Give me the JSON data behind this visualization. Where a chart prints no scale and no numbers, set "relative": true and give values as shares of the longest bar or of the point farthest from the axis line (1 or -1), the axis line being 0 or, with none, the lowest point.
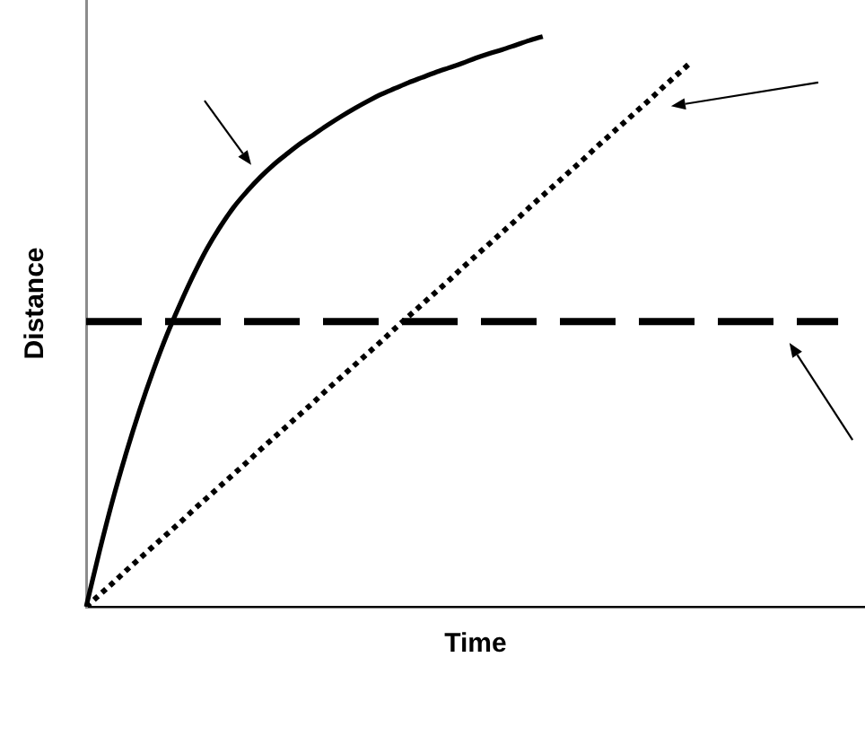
{
  "chart_data": {
    "type": "line",
    "xlabel": "Time",
    "ylabel": "Distance",
    "relative": true,
    "tick_labels": false,
    "marker": "none",
    "categories": [
      null,
      null,
      null,
      null,
      null,
      null,
      null,
      null,
      null,
      null,
      null,
      null,
      null,
      null,
      null,
      null,
      null,
      null,
      null,
      null,
      null,
      null,
      null,
      null,
      null,
      null,
      null,
      null,
      null,
      null,
      null,
      null,
      null,
      null,
      null,
      null,
      null,
      null,
      null,
      null,
      null,
      null,
      null,
      null,
      null,
      null,
      null,
      null,
      null,
      null,
      null,
      null,
      null,
      null,
      null,
      null,
      null,
      null,
      null
    ],
    "series": [
      {
        "color": "#000000",
        "line_style": "solid",
        "values": [
          0,
          0.098,
          0.189,
          0.271,
          0.346,
          0.414,
          0.476,
          0.531,
          0.582,
          0.628,
          0.667,
          0.701,
          0.729,
          0.754,
          0.776,
          0.795,
          0.813,
          0.829,
          0.845,
          0.86,
          0.874,
          0.887,
          0.899,
          0.909,
          0.919,
          0.928,
          0.937,
          0.945,
          0.953,
          0.962,
          0.97,
          0.977,
          0.985,
          0.993,
          1,
          null,
          null,
          null,
          null,
          null,
          null,
          null,
          null,
          null,
          null,
          null,
          null,
          null,
          null,
          null,
          null,
          null,
          null,
          null,
          null,
          null,
          null,
          null,
          null
        ]
      },
      {
        "color": "#000000",
        "line_style": "dotted",
        "values": [
          0,
          0.021,
          0.042,
          0.064,
          0.085,
          0.106,
          0.127,
          0.148,
          0.17,
          0.191,
          0.212,
          0.233,
          0.254,
          0.276,
          0.297,
          0.318,
          0.339,
          0.36,
          0.382,
          0.403,
          0.424,
          0.445,
          0.466,
          0.488,
          0.509,
          0.53,
          0.551,
          0.572,
          0.594,
          0.615,
          0.636,
          0.657,
          0.678,
          0.7,
          0.721,
          0.742,
          0.763,
          0.784,
          0.806,
          0.827,
          0.848,
          0.869,
          0.89,
          0.912,
          0.933,
          0.954,
          null,
          null,
          null,
          null,
          null,
          null,
          null,
          null,
          null,
          null,
          null,
          null,
          null
        ]
      },
      {
        "color": "#000000",
        "line_style": "dashed",
        "values": [
          0.5,
          0.5,
          0.5,
          0.5,
          0.5,
          0.5,
          0.5,
          0.5,
          0.5,
          0.5,
          0.5,
          0.5,
          0.5,
          0.5,
          0.5,
          0.5,
          0.5,
          0.5,
          0.5,
          0.5,
          0.5,
          0.5,
          0.5,
          0.5,
          0.5,
          0.5,
          0.5,
          0.5,
          0.5,
          0.5,
          0.5,
          0.5,
          0.5,
          0.5,
          0.5,
          0.5,
          0.5,
          0.5,
          0.5,
          0.5,
          0.5,
          0.5,
          0.5,
          0.5,
          0.5,
          0.5,
          0.5,
          0.5,
          0.5,
          0.5,
          0.5,
          0.5,
          0.5,
          0.5,
          0.5,
          0.5,
          0.5,
          null,
          null
        ]
      }
    ]
  }
}
